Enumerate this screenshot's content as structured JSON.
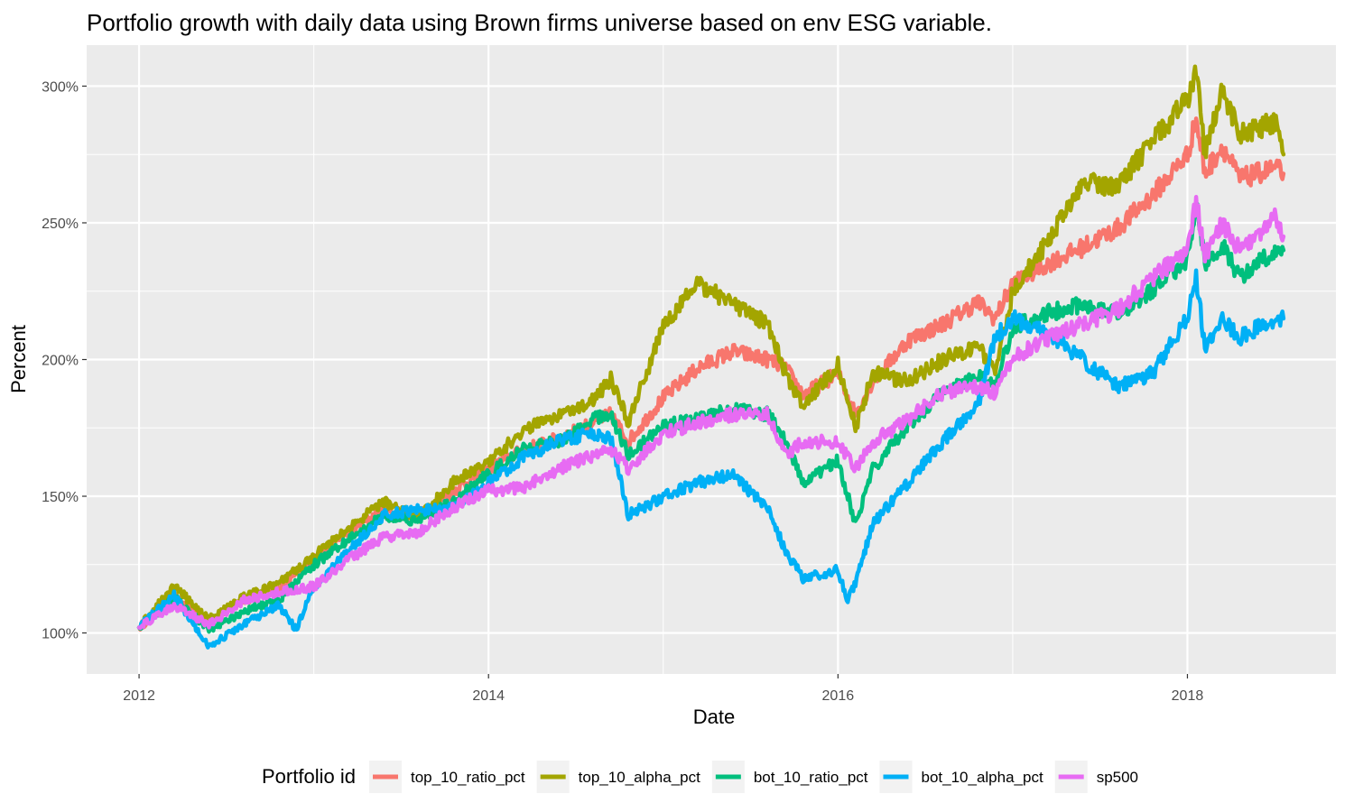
{
  "chart_data": {
    "type": "line",
    "title": "Portfolio growth with daily data using Brown firms universe based on env ESG variable.",
    "xlabel": "Date",
    "ylabel": "Percent",
    "xlim": [
      2011.7,
      2018.85
    ],
    "ylim": [
      85,
      315
    ],
    "x_ticks": [
      2012,
      2014,
      2016,
      2018
    ],
    "x_tick_labels": [
      "2012",
      "2014",
      "2016",
      "2018"
    ],
    "y_ticks": [
      100,
      150,
      200,
      250,
      300
    ],
    "y_tick_labels": [
      "100%",
      "150%",
      "200%",
      "250%",
      "300%"
    ],
    "grid": true,
    "legend_position": "bottom",
    "legend_title": "Portfolio id",
    "background_color": "#ebebeb",
    "series": [
      {
        "name": "top_10_ratio_pct",
        "color": "#f8766d",
        "points": [
          [
            2012.0,
            102
          ],
          [
            2012.2,
            113
          ],
          [
            2012.4,
            104
          ],
          [
            2012.6,
            112
          ],
          [
            2012.8,
            116
          ],
          [
            2013.0,
            127
          ],
          [
            2013.2,
            137
          ],
          [
            2013.4,
            145
          ],
          [
            2013.6,
            143
          ],
          [
            2013.8,
            152
          ],
          [
            2014.0,
            160
          ],
          [
            2014.2,
            167
          ],
          [
            2014.4,
            171
          ],
          [
            2014.6,
            177
          ],
          [
            2014.7,
            180
          ],
          [
            2014.8,
            170
          ],
          [
            2015.0,
            186
          ],
          [
            2015.2,
            197
          ],
          [
            2015.4,
            203
          ],
          [
            2015.6,
            200
          ],
          [
            2015.7,
            197
          ],
          [
            2015.8,
            187
          ],
          [
            2016.0,
            195
          ],
          [
            2016.1,
            180
          ],
          [
            2016.2,
            192
          ],
          [
            2016.4,
            207
          ],
          [
            2016.6,
            213
          ],
          [
            2016.8,
            221
          ],
          [
            2016.9,
            215
          ],
          [
            2017.0,
            228
          ],
          [
            2017.2,
            235
          ],
          [
            2017.4,
            241
          ],
          [
            2017.6,
            248
          ],
          [
            2017.8,
            260
          ],
          [
            2018.0,
            275
          ],
          [
            2018.05,
            288
          ],
          [
            2018.1,
            268
          ],
          [
            2018.2,
            278
          ],
          [
            2018.3,
            266
          ],
          [
            2018.5,
            270
          ],
          [
            2018.55,
            268
          ]
        ]
      },
      {
        "name": "top_10_alpha_pct",
        "color": "#a3a500",
        "points": [
          [
            2012.0,
            102
          ],
          [
            2012.2,
            117
          ],
          [
            2012.4,
            105
          ],
          [
            2012.6,
            113
          ],
          [
            2012.8,
            118
          ],
          [
            2013.0,
            128
          ],
          [
            2013.2,
            138
          ],
          [
            2013.4,
            148
          ],
          [
            2013.6,
            142
          ],
          [
            2013.8,
            155
          ],
          [
            2014.0,
            163
          ],
          [
            2014.2,
            174
          ],
          [
            2014.4,
            180
          ],
          [
            2014.6,
            185
          ],
          [
            2014.7,
            193
          ],
          [
            2014.8,
            177
          ],
          [
            2015.0,
            212
          ],
          [
            2015.2,
            228
          ],
          [
            2015.4,
            220
          ],
          [
            2015.6,
            213
          ],
          [
            2015.7,
            195
          ],
          [
            2015.8,
            183
          ],
          [
            2016.0,
            198
          ],
          [
            2016.1,
            175
          ],
          [
            2016.2,
            195
          ],
          [
            2016.4,
            192
          ],
          [
            2016.6,
            200
          ],
          [
            2016.8,
            205
          ],
          [
            2016.9,
            195
          ],
          [
            2017.0,
            225
          ],
          [
            2017.2,
            243
          ],
          [
            2017.4,
            265
          ],
          [
            2017.6,
            263
          ],
          [
            2017.8,
            280
          ],
          [
            2018.0,
            295
          ],
          [
            2018.05,
            305
          ],
          [
            2018.1,
            275
          ],
          [
            2018.2,
            298
          ],
          [
            2018.3,
            282
          ],
          [
            2018.5,
            287
          ],
          [
            2018.55,
            275
          ]
        ]
      },
      {
        "name": "bot_10_ratio_pct",
        "color": "#00bf7d",
        "points": [
          [
            2012.0,
            102
          ],
          [
            2012.2,
            113
          ],
          [
            2012.4,
            101
          ],
          [
            2012.6,
            108
          ],
          [
            2012.8,
            112
          ],
          [
            2013.0,
            125
          ],
          [
            2013.2,
            134
          ],
          [
            2013.4,
            143
          ],
          [
            2013.6,
            141
          ],
          [
            2013.8,
            148
          ],
          [
            2014.0,
            158
          ],
          [
            2014.2,
            167
          ],
          [
            2014.4,
            170
          ],
          [
            2014.6,
            178
          ],
          [
            2014.7,
            180
          ],
          [
            2014.8,
            165
          ],
          [
            2015.0,
            176
          ],
          [
            2015.2,
            178
          ],
          [
            2015.4,
            182
          ],
          [
            2015.6,
            180
          ],
          [
            2015.7,
            170
          ],
          [
            2015.8,
            155
          ],
          [
            2016.0,
            163
          ],
          [
            2016.1,
            140
          ],
          [
            2016.2,
            160
          ],
          [
            2016.4,
            176
          ],
          [
            2016.6,
            188
          ],
          [
            2016.8,
            195
          ],
          [
            2016.9,
            190
          ],
          [
            2017.0,
            212
          ],
          [
            2017.2,
            217
          ],
          [
            2017.4,
            220
          ],
          [
            2017.6,
            217
          ],
          [
            2017.8,
            225
          ],
          [
            2018.0,
            237
          ],
          [
            2018.05,
            257
          ],
          [
            2018.1,
            235
          ],
          [
            2018.2,
            242
          ],
          [
            2018.3,
            230
          ],
          [
            2018.5,
            240
          ],
          [
            2018.55,
            240
          ]
        ]
      },
      {
        "name": "bot_10_alpha_pct",
        "color": "#00b0f6",
        "points": [
          [
            2012.0,
            102
          ],
          [
            2012.2,
            114
          ],
          [
            2012.4,
            95
          ],
          [
            2012.6,
            103
          ],
          [
            2012.8,
            110
          ],
          [
            2012.9,
            101
          ],
          [
            2013.0,
            117
          ],
          [
            2013.2,
            130
          ],
          [
            2013.4,
            143
          ],
          [
            2013.6,
            145
          ],
          [
            2013.8,
            146
          ],
          [
            2014.0,
            155
          ],
          [
            2014.2,
            164
          ],
          [
            2014.4,
            170
          ],
          [
            2014.6,
            173
          ],
          [
            2014.7,
            171
          ],
          [
            2014.8,
            143
          ],
          [
            2015.0,
            150
          ],
          [
            2015.2,
            155
          ],
          [
            2015.4,
            158
          ],
          [
            2015.6,
            145
          ],
          [
            2015.7,
            130
          ],
          [
            2015.8,
            120
          ],
          [
            2016.0,
            123
          ],
          [
            2016.05,
            112
          ],
          [
            2016.1,
            118
          ],
          [
            2016.2,
            140
          ],
          [
            2016.4,
            155
          ],
          [
            2016.6,
            170
          ],
          [
            2016.8,
            183
          ],
          [
            2016.9,
            208
          ],
          [
            2017.0,
            215
          ],
          [
            2017.2,
            210
          ],
          [
            2017.4,
            200
          ],
          [
            2017.6,
            190
          ],
          [
            2017.8,
            195
          ],
          [
            2018.0,
            215
          ],
          [
            2018.05,
            230
          ],
          [
            2018.1,
            205
          ],
          [
            2018.2,
            215
          ],
          [
            2018.3,
            208
          ],
          [
            2018.5,
            215
          ],
          [
            2018.55,
            215
          ]
        ]
      },
      {
        "name": "sp500",
        "color": "#e76bf3",
        "points": [
          [
            2012.0,
            102
          ],
          [
            2012.2,
            110
          ],
          [
            2012.4,
            103
          ],
          [
            2012.6,
            112
          ],
          [
            2012.8,
            115
          ],
          [
            2013.0,
            117
          ],
          [
            2013.2,
            127
          ],
          [
            2013.4,
            135
          ],
          [
            2013.6,
            137
          ],
          [
            2013.8,
            146
          ],
          [
            2014.0,
            152
          ],
          [
            2014.2,
            153
          ],
          [
            2014.4,
            160
          ],
          [
            2014.6,
            165
          ],
          [
            2014.7,
            167
          ],
          [
            2014.8,
            160
          ],
          [
            2015.0,
            173
          ],
          [
            2015.2,
            177
          ],
          [
            2015.4,
            180
          ],
          [
            2015.6,
            180
          ],
          [
            2015.7,
            165
          ],
          [
            2015.8,
            170
          ],
          [
            2016.0,
            170
          ],
          [
            2016.1,
            160
          ],
          [
            2016.2,
            170
          ],
          [
            2016.4,
            178
          ],
          [
            2016.6,
            188
          ],
          [
            2016.8,
            190
          ],
          [
            2016.9,
            188
          ],
          [
            2017.0,
            200
          ],
          [
            2017.2,
            208
          ],
          [
            2017.4,
            213
          ],
          [
            2017.6,
            218
          ],
          [
            2017.8,
            230
          ],
          [
            2018.0,
            240
          ],
          [
            2018.05,
            258
          ],
          [
            2018.1,
            238
          ],
          [
            2018.2,
            250
          ],
          [
            2018.3,
            240
          ],
          [
            2018.5,
            252
          ],
          [
            2018.55,
            245
          ]
        ]
      }
    ]
  }
}
